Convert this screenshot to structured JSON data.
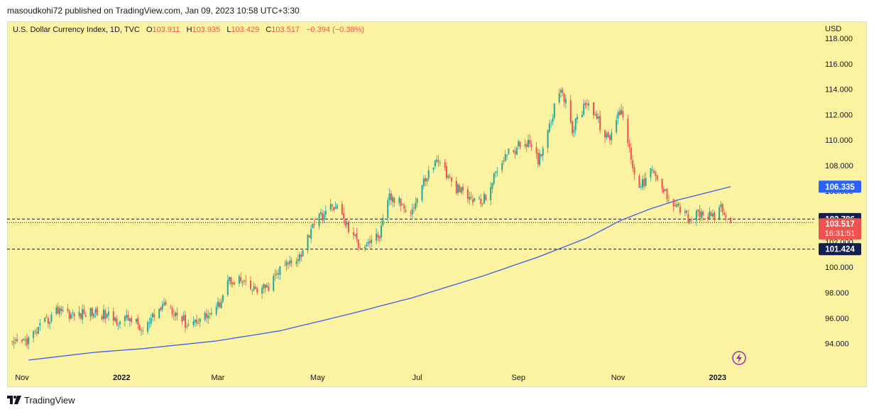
{
  "header": {
    "publish_line": "masoudkohi72 published on TradingView.com, Jan 09, 2023 10:58 UTC+3:30"
  },
  "legend": {
    "title": "U.S. Dollar Currency Index, 1D, TVC",
    "o_label": "O",
    "o_value": "103.911",
    "h_label": "H",
    "h_value": "103.935",
    "l_label": "L",
    "l_value": "103.429",
    "c_label": "C",
    "c_value": "103.517",
    "change": "−0.394 (−0.38%)"
  },
  "axis": {
    "currency": "USD",
    "y_ticks": [
      "118.000",
      "116.000",
      "114.000",
      "112.000",
      "110.000",
      "108.000",
      "106.000",
      "104.000",
      "102.000",
      "100.000",
      "98.000",
      "96.000",
      "94.000"
    ],
    "x_ticks": [
      "Nov",
      "2022",
      "Mar",
      "May",
      "Jul",
      "Sep",
      "Nov",
      "2023"
    ]
  },
  "price_labels": {
    "ma": "106.335",
    "resistance": "103.786",
    "last": "103.517",
    "countdown": "16:31:51",
    "support": "101.424"
  },
  "footer": {
    "brand": "TradingView"
  },
  "colors": {
    "background": "#fcf3a2",
    "up": "#26a69a",
    "down": "#ef5350",
    "ma_line": "#3d5dea",
    "label_dark": "#131f4d",
    "label_ma": "#2962ff"
  },
  "chart_data": {
    "type": "candlestick",
    "title": "U.S. Dollar Currency Index, 1D, TVC",
    "ylabel": "USD",
    "ylim": [
      92.5,
      119.0
    ],
    "grid": false,
    "anchors": [
      [
        "2021-10-26",
        93.8
      ],
      [
        "2021-11-05",
        94.3
      ],
      [
        "2021-11-15",
        95.6
      ],
      [
        "2021-11-24",
        96.8
      ],
      [
        "2021-12-02",
        96.2
      ],
      [
        "2021-12-15",
        96.5
      ],
      [
        "2021-12-31",
        95.8
      ],
      [
        "2022-01-07",
        96.0
      ],
      [
        "2022-01-14",
        94.9
      ],
      [
        "2022-01-28",
        97.3
      ],
      [
        "2022-02-10",
        95.5
      ],
      [
        "2022-02-28",
        96.6
      ],
      [
        "2022-03-07",
        99.0
      ],
      [
        "2022-03-14",
        99.0
      ],
      [
        "2022-03-21",
        98.2
      ],
      [
        "2022-03-31",
        98.3
      ],
      [
        "2022-04-08",
        99.8
      ],
      [
        "2022-04-22",
        101.2
      ],
      [
        "2022-04-28",
        103.5
      ],
      [
        "2022-05-12",
        104.9
      ],
      [
        "2022-05-20",
        103.0
      ],
      [
        "2022-05-27",
        101.7
      ],
      [
        "2022-06-08",
        102.5
      ],
      [
        "2022-06-14",
        105.5
      ],
      [
        "2022-06-28",
        104.5
      ],
      [
        "2022-07-06",
        107.0
      ],
      [
        "2022-07-14",
        108.6
      ],
      [
        "2022-07-22",
        106.5
      ],
      [
        "2022-08-02",
        105.4
      ],
      [
        "2022-08-10",
        105.1
      ],
      [
        "2022-08-23",
        108.7
      ],
      [
        "2022-09-06",
        109.9
      ],
      [
        "2022-09-13",
        108.3
      ],
      [
        "2022-09-27",
        114.3
      ],
      [
        "2022-10-04",
        110.8
      ],
      [
        "2022-10-13",
        113.2
      ],
      [
        "2022-10-26",
        109.9
      ],
      [
        "2022-11-03",
        112.6
      ],
      [
        "2022-11-10",
        108.0
      ],
      [
        "2022-11-15",
        106.3
      ],
      [
        "2022-11-21",
        107.6
      ],
      [
        "2022-11-30",
        105.8
      ],
      [
        "2022-12-08",
        104.8
      ],
      [
        "2022-12-14",
        103.8
      ],
      [
        "2022-12-22",
        104.2
      ],
      [
        "2022-12-28",
        103.9
      ],
      [
        "2023-01-03",
        104.5
      ],
      [
        "2023-01-06",
        103.9
      ],
      [
        "2023-01-09",
        103.517
      ]
    ],
    "last_candle": {
      "date": "2023-01-09",
      "open": 103.911,
      "high": 103.935,
      "low": 103.429,
      "close": 103.517
    },
    "moving_average": {
      "name": "MA",
      "points": [
        [
          "2021-11-05",
          92.7
        ],
        [
          "2021-12-15",
          93.3
        ],
        [
          "2022-01-14",
          93.6
        ],
        [
          "2022-02-28",
          94.2
        ],
        [
          "2022-04-08",
          95.0
        ],
        [
          "2022-05-20",
          96.3
        ],
        [
          "2022-06-28",
          97.6
        ],
        [
          "2022-08-10",
          99.3
        ],
        [
          "2022-09-13",
          100.8
        ],
        [
          "2022-10-13",
          102.3
        ],
        [
          "2022-11-03",
          103.7
        ],
        [
          "2022-11-21",
          104.6
        ],
        [
          "2022-12-08",
          105.3
        ],
        [
          "2023-01-09",
          106.335
        ]
      ]
    },
    "horizontal_lines": [
      {
        "value": 103.786,
        "style": "dashed"
      },
      {
        "value": 101.424,
        "style": "dashed"
      },
      {
        "value": 103.517,
        "style": "dotted"
      }
    ],
    "x_ticks": [
      {
        "label": "Nov",
        "date": "2021-11-01"
      },
      {
        "label": "2022",
        "date": "2022-01-01"
      },
      {
        "label": "Mar",
        "date": "2022-03-01"
      },
      {
        "label": "May",
        "date": "2022-05-01"
      },
      {
        "label": "Jul",
        "date": "2022-07-01"
      },
      {
        "label": "Sep",
        "date": "2022-09-01"
      },
      {
        "label": "Nov",
        "date": "2022-11-01"
      },
      {
        "label": "2023",
        "date": "2023-01-01"
      }
    ]
  }
}
